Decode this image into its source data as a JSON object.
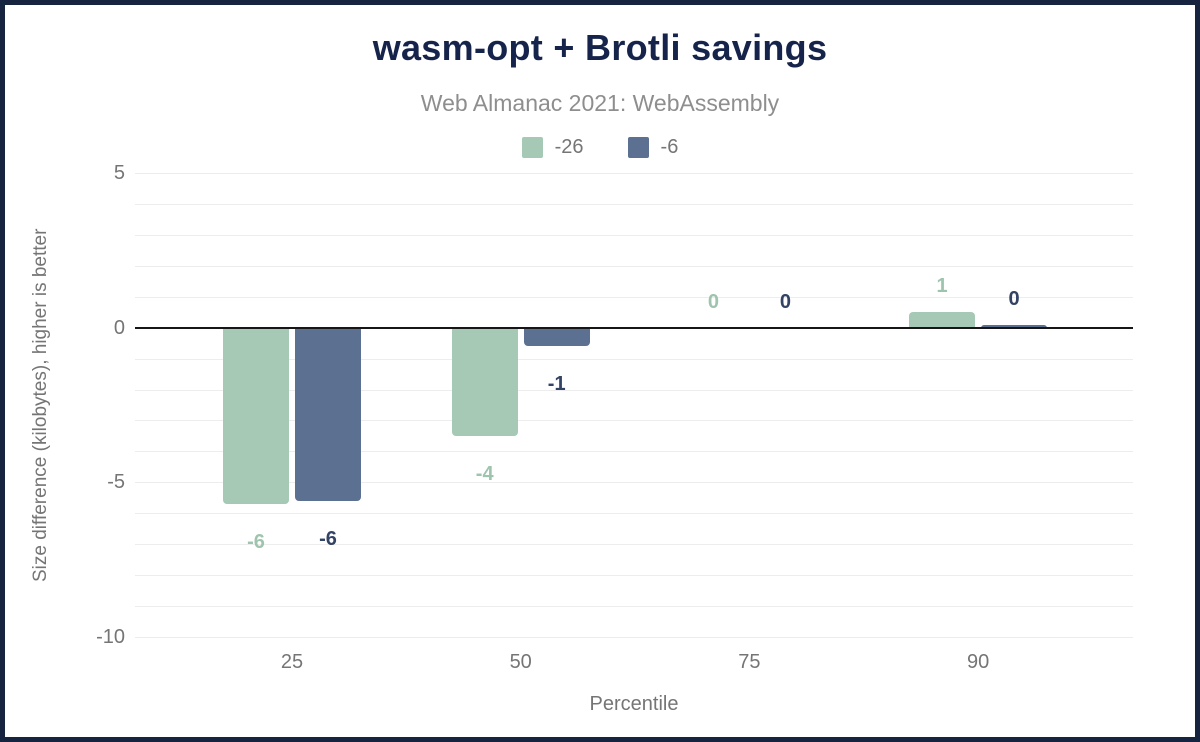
{
  "frame": {
    "border_color": "#16243f",
    "background": "#ffffff"
  },
  "chart": {
    "title": "wasm-opt + Brotli savings",
    "subtitle": "Web Almanac 2021: WebAssembly",
    "x_axis": {
      "title": "Percentile"
    },
    "y_axis": {
      "title": "Size difference (kilobytes), higher is better"
    }
  },
  "chart_data": {
    "type": "bar",
    "title": "wasm-opt + Brotli savings",
    "subtitle": "Web Almanac 2021: WebAssembly",
    "xlabel": "Percentile",
    "ylabel": "Size difference (kilobytes), higher is better",
    "categories": [
      "25",
      "50",
      "75",
      "90"
    ],
    "ylim": [
      -10,
      5
    ],
    "y_tick_values": [
      5,
      0,
      -5,
      -10
    ],
    "y_tick_labels": [
      "5",
      "0",
      "-5",
      "-10"
    ],
    "grid": "horizontal",
    "legend_position": "top-center",
    "zero_line": true,
    "series": [
      {
        "name": "-26",
        "color": "#a5c9b5",
        "label_color": "#9fc4ae",
        "values": [
          -5.7,
          -3.5,
          0,
          0.5
        ],
        "labels": [
          "-6",
          "-4",
          "0",
          "1"
        ]
      },
      {
        "name": "-6",
        "color": "#5c7092",
        "label_color": "#334364",
        "values": [
          -5.6,
          -0.6,
          0,
          0.1
        ],
        "labels": [
          "-6",
          "-1",
          "0",
          "0"
        ]
      }
    ]
  }
}
